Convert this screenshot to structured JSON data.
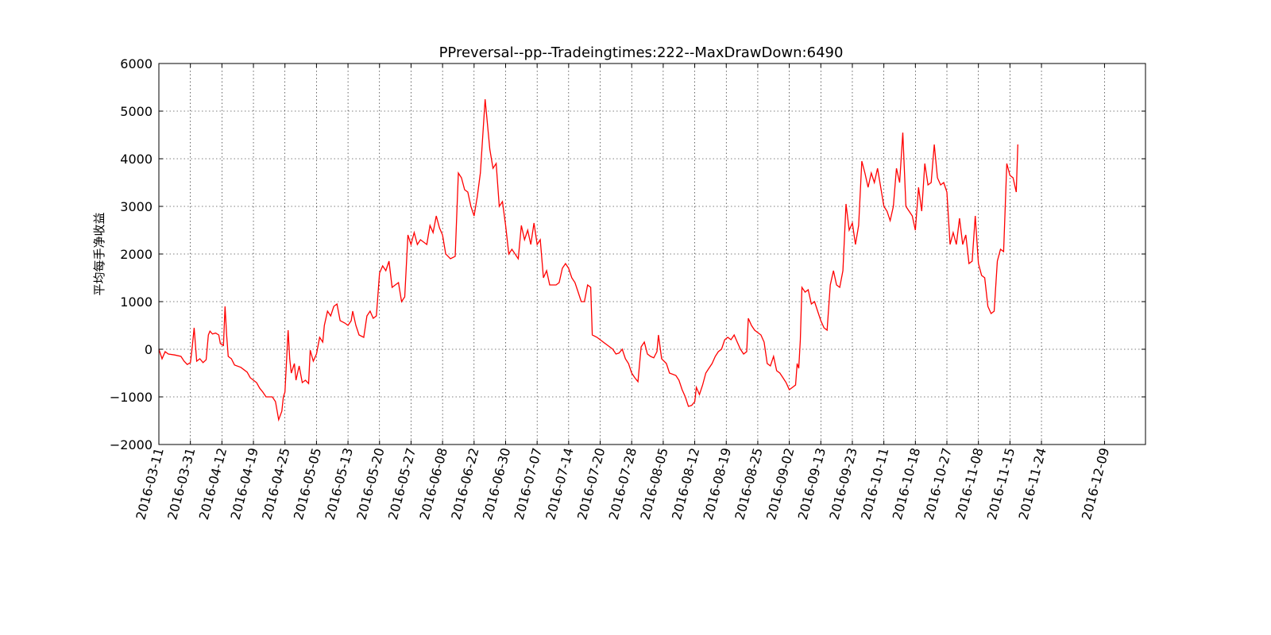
{
  "chart_data": {
    "type": "line",
    "title": "PPreversal--pp--Tradeingtimes:222--MaxDrawDown:6490",
    "xlabel": "",
    "ylabel": "平均每手净收益",
    "ylim": [
      -2000,
      6000
    ],
    "yticks": [
      -2000,
      -1000,
      0,
      1000,
      2000,
      3000,
      4000,
      5000,
      6000
    ],
    "ytick_labels": [
      "−2000",
      "−1000",
      "0",
      "1000",
      "2000",
      "3000",
      "4000",
      "5000",
      "6000"
    ],
    "xlim": [
      0,
      31.3
    ],
    "xtick_positions": [
      0,
      1,
      2,
      3,
      4,
      5,
      6,
      7,
      8,
      9,
      10,
      11,
      12,
      13,
      14,
      15,
      16,
      17,
      18,
      19,
      20,
      21,
      22,
      23,
      24,
      25,
      26,
      27,
      28,
      30
    ],
    "xtick_labels": [
      "2016-03-11",
      "2016-03-31",
      "2016-04-12",
      "2016-04-19",
      "2016-04-25",
      "2016-05-05",
      "2016-05-13",
      "2016-05-20",
      "2016-05-27",
      "2016-06-08",
      "2016-06-22",
      "2016-06-30",
      "2016-07-07",
      "2016-07-14",
      "2016-07-20",
      "2016-07-28",
      "2016-08-05",
      "2016-08-12",
      "2016-08-19",
      "2016-08-25",
      "2016-09-02",
      "2016-09-13",
      "2016-09-23",
      "2016-10-11",
      "2016-10-18",
      "2016-10-27",
      "2016-11-08",
      "2016-11-15",
      "2016-11-24",
      "2016-12-09"
    ],
    "grid": true,
    "line_color": "#ff0000",
    "series": [
      {
        "values": [
          [
            0,
            0
          ],
          [
            0.1,
            -200
          ],
          [
            0.2,
            -50
          ],
          [
            0.3,
            -100
          ],
          [
            0.5,
            -120
          ],
          [
            0.7,
            -150
          ],
          [
            0.8,
            -250
          ],
          [
            0.9,
            -320
          ],
          [
            1.0,
            -280
          ],
          [
            1.05,
            0
          ],
          [
            1.12,
            450
          ],
          [
            1.2,
            -250
          ],
          [
            1.3,
            -200
          ],
          [
            1.4,
            -280
          ],
          [
            1.5,
            -220
          ],
          [
            1.57,
            300
          ],
          [
            1.62,
            380
          ],
          [
            1.7,
            320
          ],
          [
            1.8,
            340
          ],
          [
            1.9,
            300
          ],
          [
            1.95,
            120
          ],
          [
            2.05,
            80
          ],
          [
            2.1,
            900
          ],
          [
            2.15,
            300
          ],
          [
            2.2,
            -150
          ],
          [
            2.3,
            -200
          ],
          [
            2.4,
            -330
          ],
          [
            2.6,
            -380
          ],
          [
            2.8,
            -480
          ],
          [
            2.9,
            -600
          ],
          [
            3.1,
            -700
          ],
          [
            3.2,
            -820
          ],
          [
            3.3,
            -900
          ],
          [
            3.4,
            -1000
          ],
          [
            3.6,
            -1000
          ],
          [
            3.7,
            -1100
          ],
          [
            3.8,
            -1480
          ],
          [
            3.9,
            -1300
          ],
          [
            3.95,
            -1000
          ],
          [
            4.0,
            -900
          ],
          [
            4.1,
            400
          ],
          [
            4.15,
            -200
          ],
          [
            4.2,
            -500
          ],
          [
            4.3,
            -300
          ],
          [
            4.35,
            -650
          ],
          [
            4.45,
            -350
          ],
          [
            4.55,
            -700
          ],
          [
            4.65,
            -650
          ],
          [
            4.75,
            -720
          ],
          [
            4.8,
            -20
          ],
          [
            4.9,
            -250
          ],
          [
            5.0,
            -100
          ],
          [
            5.1,
            250
          ],
          [
            5.2,
            150
          ],
          [
            5.25,
            500
          ],
          [
            5.35,
            800
          ],
          [
            5.45,
            700
          ],
          [
            5.55,
            900
          ],
          [
            5.65,
            950
          ],
          [
            5.75,
            600
          ],
          [
            5.9,
            550
          ],
          [
            6.0,
            500
          ],
          [
            6.1,
            600
          ],
          [
            6.15,
            800
          ],
          [
            6.25,
            500
          ],
          [
            6.35,
            300
          ],
          [
            6.5,
            250
          ],
          [
            6.6,
            700
          ],
          [
            6.7,
            800
          ],
          [
            6.8,
            650
          ],
          [
            6.9,
            700
          ],
          [
            7.0,
            1600
          ],
          [
            7.1,
            1750
          ],
          [
            7.2,
            1650
          ],
          [
            7.3,
            1850
          ],
          [
            7.4,
            1300
          ],
          [
            7.5,
            1350
          ],
          [
            7.6,
            1400
          ],
          [
            7.7,
            1000
          ],
          [
            7.8,
            1100
          ],
          [
            7.9,
            2400
          ],
          [
            8.0,
            2200
          ],
          [
            8.1,
            2450
          ],
          [
            8.2,
            2200
          ],
          [
            8.3,
            2300
          ],
          [
            8.5,
            2200
          ],
          [
            8.6,
            2600
          ],
          [
            8.7,
            2450
          ],
          [
            8.8,
            2800
          ],
          [
            8.9,
            2550
          ],
          [
            9.0,
            2400
          ],
          [
            9.1,
            2000
          ],
          [
            9.25,
            1900
          ],
          [
            9.4,
            1950
          ],
          [
            9.5,
            3700
          ],
          [
            9.6,
            3600
          ],
          [
            9.7,
            3350
          ],
          [
            9.8,
            3300
          ],
          [
            9.9,
            3000
          ],
          [
            10.0,
            2800
          ],
          [
            10.1,
            3200
          ],
          [
            10.2,
            3700
          ],
          [
            10.35,
            5250
          ],
          [
            10.5,
            4200
          ],
          [
            10.6,
            3800
          ],
          [
            10.7,
            3900
          ],
          [
            10.8,
            3000
          ],
          [
            10.9,
            3100
          ],
          [
            11.0,
            2600
          ],
          [
            11.1,
            2000
          ],
          [
            11.2,
            2100
          ],
          [
            11.35,
            1950
          ],
          [
            11.4,
            1900
          ],
          [
            11.5,
            2600
          ],
          [
            11.6,
            2300
          ],
          [
            11.7,
            2500
          ],
          [
            11.8,
            2200
          ],
          [
            11.9,
            2650
          ],
          [
            12.0,
            2200
          ],
          [
            12.1,
            2300
          ],
          [
            12.2,
            1500
          ],
          [
            12.3,
            1650
          ],
          [
            12.4,
            1350
          ],
          [
            12.6,
            1350
          ],
          [
            12.7,
            1400
          ],
          [
            12.8,
            1700
          ],
          [
            12.9,
            1800
          ],
          [
            13.0,
            1700
          ],
          [
            13.1,
            1500
          ],
          [
            13.2,
            1400
          ],
          [
            13.3,
            1200
          ],
          [
            13.4,
            1000
          ],
          [
            13.5,
            1000
          ],
          [
            13.6,
            1350
          ],
          [
            13.7,
            1300
          ],
          [
            13.75,
            300
          ],
          [
            13.9,
            250
          ],
          [
            14.0,
            200
          ],
          [
            14.2,
            100
          ],
          [
            14.4,
            0
          ],
          [
            14.5,
            -100
          ],
          [
            14.6,
            -80
          ],
          [
            14.7,
            0
          ],
          [
            14.8,
            -200
          ],
          [
            14.9,
            -300
          ],
          [
            15.0,
            -500
          ],
          [
            15.1,
            -600
          ],
          [
            15.2,
            -680
          ],
          [
            15.3,
            50
          ],
          [
            15.4,
            150
          ],
          [
            15.5,
            -100
          ],
          [
            15.6,
            -150
          ],
          [
            15.7,
            -180
          ],
          [
            15.8,
            -50
          ],
          [
            15.85,
            300
          ],
          [
            15.95,
            -200
          ],
          [
            16.1,
            -300
          ],
          [
            16.2,
            -500
          ],
          [
            16.4,
            -550
          ],
          [
            16.5,
            -650
          ],
          [
            16.6,
            -850
          ],
          [
            16.7,
            -1000
          ],
          [
            16.8,
            -1200
          ],
          [
            16.9,
            -1180
          ],
          [
            17.0,
            -1100
          ],
          [
            17.05,
            -800
          ],
          [
            17.15,
            -950
          ],
          [
            17.25,
            -750
          ],
          [
            17.35,
            -500
          ],
          [
            17.45,
            -400
          ],
          [
            17.55,
            -300
          ],
          [
            17.65,
            -150
          ],
          [
            17.75,
            -50
          ],
          [
            17.85,
            0
          ],
          [
            17.95,
            200
          ],
          [
            18.05,
            250
          ],
          [
            18.15,
            200
          ],
          [
            18.25,
            300
          ],
          [
            18.35,
            150
          ],
          [
            18.45,
            0
          ],
          [
            18.55,
            -100
          ],
          [
            18.65,
            -50
          ],
          [
            18.7,
            650
          ],
          [
            18.8,
            500
          ],
          [
            18.9,
            400
          ],
          [
            19.0,
            350
          ],
          [
            19.1,
            300
          ],
          [
            19.2,
            150
          ],
          [
            19.3,
            -300
          ],
          [
            19.4,
            -350
          ],
          [
            19.5,
            -150
          ],
          [
            19.6,
            -450
          ],
          [
            19.7,
            -500
          ],
          [
            19.8,
            -600
          ],
          [
            19.9,
            -700
          ],
          [
            20.0,
            -850
          ],
          [
            20.1,
            -800
          ],
          [
            20.2,
            -750
          ],
          [
            20.25,
            -300
          ],
          [
            20.3,
            -400
          ],
          [
            20.35,
            200
          ],
          [
            20.4,
            1300
          ],
          [
            20.5,
            1200
          ],
          [
            20.6,
            1250
          ],
          [
            20.7,
            950
          ],
          [
            20.8,
            1000
          ],
          [
            20.9,
            800
          ],
          [
            21.0,
            600
          ],
          [
            21.1,
            450
          ],
          [
            21.2,
            400
          ],
          [
            21.3,
            1350
          ],
          [
            21.4,
            1650
          ],
          [
            21.5,
            1350
          ],
          [
            21.6,
            1300
          ],
          [
            21.7,
            1650
          ],
          [
            21.8,
            3050
          ],
          [
            21.9,
            2500
          ],
          [
            22.0,
            2650
          ],
          [
            22.1,
            2200
          ],
          [
            22.2,
            2600
          ],
          [
            22.3,
            3950
          ],
          [
            22.4,
            3700
          ],
          [
            22.5,
            3400
          ],
          [
            22.6,
            3700
          ],
          [
            22.7,
            3500
          ],
          [
            22.8,
            3800
          ],
          [
            22.9,
            3400
          ],
          [
            23.0,
            3000
          ],
          [
            23.1,
            2900
          ],
          [
            23.2,
            2700
          ],
          [
            23.3,
            3000
          ],
          [
            23.4,
            3800
          ],
          [
            23.5,
            3500
          ],
          [
            23.6,
            4550
          ],
          [
            23.7,
            3000
          ],
          [
            23.8,
            2900
          ],
          [
            23.9,
            2800
          ],
          [
            24.0,
            2500
          ],
          [
            24.1,
            3400
          ],
          [
            24.2,
            2900
          ],
          [
            24.3,
            3900
          ],
          [
            24.4,
            3450
          ],
          [
            24.5,
            3500
          ],
          [
            24.6,
            4300
          ],
          [
            24.7,
            3600
          ],
          [
            24.8,
            3450
          ],
          [
            24.9,
            3500
          ],
          [
            25.0,
            3300
          ],
          [
            25.1,
            2200
          ],
          [
            25.2,
            2450
          ],
          [
            25.3,
            2200
          ],
          [
            25.4,
            2750
          ],
          [
            25.5,
            2200
          ],
          [
            25.6,
            2400
          ],
          [
            25.7,
            1800
          ],
          [
            25.8,
            1850
          ],
          [
            25.9,
            2800
          ],
          [
            26.0,
            1800
          ],
          [
            26.1,
            1550
          ],
          [
            26.2,
            1500
          ],
          [
            26.3,
            900
          ],
          [
            26.4,
            750
          ],
          [
            26.5,
            800
          ],
          [
            26.6,
            1850
          ],
          [
            26.7,
            2100
          ],
          [
            26.8,
            2050
          ],
          [
            26.9,
            3900
          ],
          [
            27.0,
            3650
          ],
          [
            27.1,
            3600
          ],
          [
            27.2,
            3300
          ],
          [
            27.25,
            4300
          ]
        ]
      }
    ]
  }
}
